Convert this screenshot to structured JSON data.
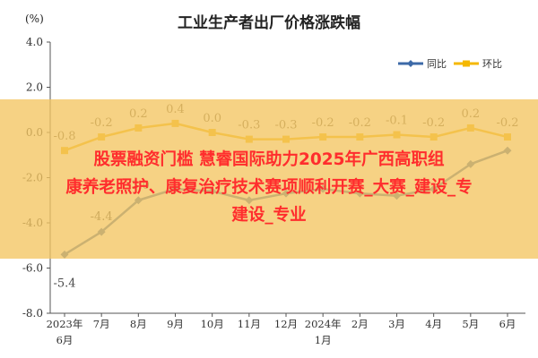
{
  "chart_data": {
    "type": "line",
    "title": "工业生产者出厂价格涨跌幅",
    "unit": "(%)",
    "ylim": [
      -8.0,
      4.0
    ],
    "yticks": [
      "4.0",
      "2.0",
      "0.0",
      "-2.0",
      "-4.0",
      "-6.0",
      "-8.0"
    ],
    "ytick_values": [
      4,
      2,
      0,
      -2,
      -4,
      -6,
      -8
    ],
    "categories": [
      "2023年 6月",
      "7月",
      "8月",
      "9月",
      "10月",
      "11月",
      "12月",
      "2024年 1月",
      "2月",
      "3月",
      "4月",
      "5月",
      "6月"
    ],
    "x_label_lines": [
      [
        "2023年",
        "6月"
      ],
      [
        "7月"
      ],
      [
        "8月"
      ],
      [
        "9月"
      ],
      [
        "10月"
      ],
      [
        "11月"
      ],
      [
        "12月"
      ],
      [
        "2024年",
        "1月"
      ],
      [
        "2月"
      ],
      [
        "3月"
      ],
      [
        "4月"
      ],
      [
        "5月"
      ],
      [
        "6月"
      ]
    ],
    "legend_position": "top-right",
    "grid": false,
    "series": [
      {
        "name": "同比",
        "color": "#3d6aa8",
        "values": [
          -5.4,
          -4.4,
          -3.0,
          -2.5,
          -2.6,
          -3.0,
          -2.7,
          -2.5,
          -2.7,
          -2.8,
          -2.5,
          -1.4,
          -0.8
        ],
        "labels": [
          "-5.4",
          "-4.4",
          "-3.0",
          "",
          "",
          "",
          "",
          "",
          "",
          "",
          "",
          "",
          ""
        ]
      },
      {
        "name": "环比",
        "color": "#f5b800",
        "values": [
          -0.8,
          -0.2,
          0.2,
          0.4,
          0.0,
          -0.3,
          -0.3,
          -0.2,
          -0.2,
          -0.1,
          -0.2,
          0.2,
          -0.2
        ],
        "labels": [
          "-0.8",
          "-0.2",
          "0.2",
          "0.4",
          "0.0",
          "-0.3",
          "-0.3",
          "-0.2",
          "-0.2",
          "-0.1",
          "-0.2",
          "0.2",
          "-0.2"
        ]
      }
    ]
  },
  "overlay": {
    "lines": [
      "股票融资门槛 慧睿国际助力2025年广西高职组",
      "康养老照护、康复治疗技术赛项顺利开赛_大赛_建设_专",
      "建设_专业"
    ]
  }
}
